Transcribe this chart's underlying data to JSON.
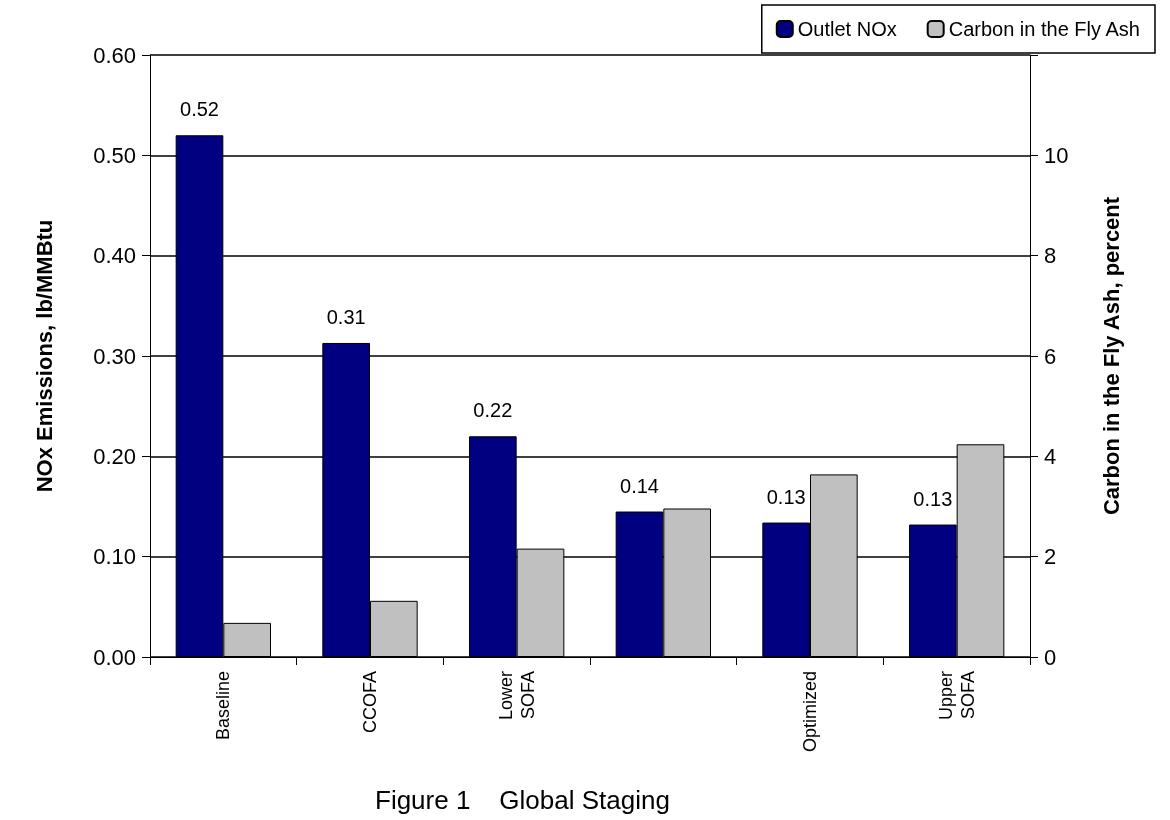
{
  "chart_data": {
    "type": "bar",
    "title": "Figure 1    Global Staging",
    "categories": [
      "Baseline",
      "CCOFA",
      "Lower\nSOFA",
      null,
      "Optimized",
      "Upper\nSOFA"
    ],
    "ylabel": "NOx Emissions, lb/MMBtu",
    "y2label": "Carbon in the Fly Ash, percent",
    "ylim": [
      0,
      0.6
    ],
    "yticks": [
      {
        "value": 0,
        "label": "0.00"
      },
      {
        "value": 0.1,
        "label": "0.10"
      },
      {
        "value": 0.2,
        "label": "0.20"
      },
      {
        "value": 0.3,
        "label": "0.30"
      },
      {
        "value": 0.4,
        "label": "0.40"
      },
      {
        "value": 0.5,
        "label": "0.50"
      },
      {
        "value": 0.6,
        "label": "0.60"
      }
    ],
    "y2lim": [
      0,
      12
    ],
    "y2ticks": [
      0,
      2,
      4,
      6,
      8,
      10,
      {
        "value": 12,
        "label": null
      }
    ],
    "series": [
      {
        "name": "Outlet NOx",
        "color": "#000080",
        "values": [
          0.52,
          0.313,
          0.22,
          0.145,
          0.134,
          0.132
        ],
        "value_labels": [
          "0.52",
          "0.31",
          "0.22",
          "0.14",
          "0.13",
          "0.13"
        ]
      },
      {
        "name": "Carbon in the Fly Ash",
        "color": "#c0c0c0",
        "axis": "y2",
        "values": [
          0.68,
          1.12,
          2.16,
          2.96,
          3.64,
          4.24
        ]
      }
    ],
    "grid": "y",
    "legend": "top right"
  }
}
